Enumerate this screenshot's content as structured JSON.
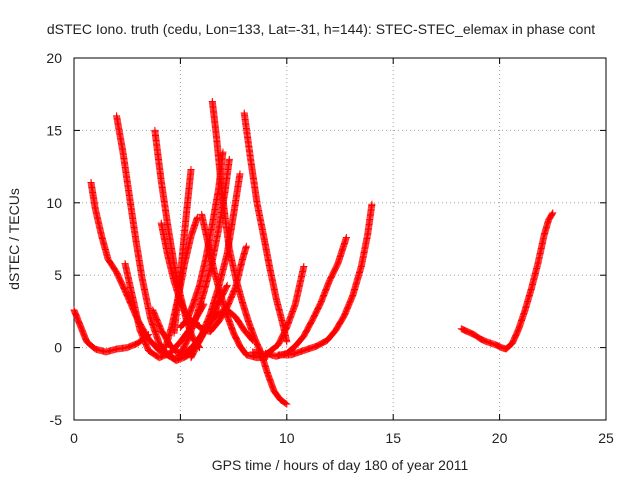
{
  "chart_data": {
    "type": "scatter",
    "title": "dSTEC Iono. truth (cedu, Lon=133, Lat=-31, h=144): STEC-STEC_elemax in phase cont",
    "xlabel": "GPS time / hours of day 180 of year 2011",
    "ylabel": "dSTEC  / TECUs",
    "xlim": [
      0,
      25
    ],
    "ylim": [
      -5,
      20
    ],
    "xticks": [
      "0",
      "5",
      "10",
      "15",
      "20",
      "25"
    ],
    "yticks": [
      "-5",
      "0",
      "5",
      "10",
      "15",
      "20"
    ],
    "grid": true,
    "marker": "plus",
    "color": "#ff0000",
    "series": [
      {
        "points": [
          [
            0.0,
            2.6
          ],
          [
            0.3,
            1.5
          ],
          [
            0.6,
            0.4
          ],
          [
            1.0,
            -0.1
          ],
          [
            1.5,
            -0.3
          ],
          [
            2.0,
            -0.1
          ],
          [
            2.5,
            0.0
          ],
          [
            3.0,
            0.3
          ],
          [
            3.5,
            0.9
          ]
        ]
      },
      {
        "points": [
          [
            0.8,
            11.4
          ],
          [
            1.0,
            9.6
          ],
          [
            1.3,
            7.7
          ],
          [
            1.6,
            6.1
          ],
          [
            2.0,
            5.2
          ],
          [
            2.5,
            3.6
          ],
          [
            3.0,
            1.9
          ],
          [
            3.5,
            0.6
          ],
          [
            4.0,
            -0.2
          ],
          [
            4.5,
            -0.6
          ],
          [
            4.8,
            -0.8
          ]
        ]
      },
      {
        "points": [
          [
            2.0,
            16.0
          ],
          [
            2.3,
            13.5
          ],
          [
            2.6,
            10.5
          ],
          [
            2.9,
            7.5
          ],
          [
            3.2,
            4.8
          ],
          [
            3.6,
            2.0
          ],
          [
            4.0,
            0.3
          ],
          [
            4.4,
            -0.5
          ],
          [
            4.8,
            -0.9
          ],
          [
            5.3,
            -0.6
          ],
          [
            5.8,
            0.2
          ],
          [
            6.3,
            1.5
          ],
          [
            6.8,
            3.1
          ],
          [
            7.2,
            4.3
          ]
        ]
      },
      {
        "points": [
          [
            2.4,
            5.8
          ],
          [
            2.8,
            3.2
          ],
          [
            3.1,
            1.2
          ],
          [
            3.5,
            -0.2
          ],
          [
            4.0,
            -0.7
          ],
          [
            4.5,
            -0.4
          ],
          [
            5.0,
            0.4
          ],
          [
            5.4,
            1.2
          ],
          [
            5.8,
            2.2
          ],
          [
            6.1,
            3.0
          ]
        ]
      },
      {
        "points": [
          [
            3.8,
            15.0
          ],
          [
            4.1,
            11.5
          ],
          [
            4.4,
            8.5
          ],
          [
            4.7,
            5.8
          ],
          [
            5.0,
            3.6
          ],
          [
            5.3,
            1.8
          ],
          [
            5.6,
            0.6
          ],
          [
            5.9,
            0.0
          ]
        ]
      },
      {
        "points": [
          [
            4.1,
            8.6
          ],
          [
            4.4,
            6.4
          ],
          [
            4.7,
            4.6
          ],
          [
            5.0,
            3.2
          ],
          [
            5.3,
            2.2
          ],
          [
            5.6,
            1.7
          ],
          [
            5.9,
            1.5
          ]
        ]
      },
      {
        "points": [
          [
            3.7,
            2.6
          ],
          [
            4.1,
            1.2
          ],
          [
            4.5,
            0.2
          ],
          [
            4.8,
            -0.3
          ],
          [
            5.2,
            -0.4
          ],
          [
            5.6,
            0.1
          ],
          [
            6.0,
            0.9
          ],
          [
            6.4,
            2.3
          ],
          [
            6.8,
            4.2
          ],
          [
            7.2,
            6.5
          ],
          [
            7.5,
            9.2
          ],
          [
            7.8,
            12.0
          ]
        ]
      },
      {
        "points": [
          [
            4.3,
            0.0
          ],
          [
            4.6,
            1.5
          ],
          [
            4.9,
            3.5
          ],
          [
            5.2,
            5.8
          ],
          [
            5.5,
            7.7
          ],
          [
            5.8,
            9.0
          ]
        ]
      },
      {
        "points": [
          [
            4.7,
            1.0
          ],
          [
            4.9,
            3.5
          ],
          [
            5.1,
            6.5
          ],
          [
            5.3,
            9.5
          ],
          [
            5.5,
            12.3
          ]
        ]
      },
      {
        "points": [
          [
            4.9,
            -0.7
          ],
          [
            5.3,
            0.4
          ],
          [
            5.7,
            1.9
          ],
          [
            6.1,
            3.8
          ],
          [
            6.5,
            6.0
          ],
          [
            6.8,
            8.2
          ],
          [
            7.1,
            10.8
          ],
          [
            7.3,
            13.0
          ]
        ]
      },
      {
        "points": [
          [
            5.0,
            1.4
          ],
          [
            5.3,
            1.9
          ],
          [
            5.6,
            3.0
          ],
          [
            5.9,
            4.3
          ],
          [
            6.2,
            6.2
          ],
          [
            6.5,
            8.5
          ],
          [
            6.8,
            11.0
          ],
          [
            7.0,
            13.5
          ]
        ]
      },
      {
        "points": [
          [
            5.3,
            2.0
          ],
          [
            5.6,
            1.8
          ],
          [
            6.0,
            1.3
          ],
          [
            6.4,
            1.1
          ],
          [
            6.8,
            1.8
          ],
          [
            7.2,
            2.8
          ],
          [
            7.6,
            4.2
          ],
          [
            7.9,
            6.0
          ],
          [
            8.1,
            7.0
          ]
        ]
      },
      {
        "points": [
          [
            5.5,
            -0.7
          ],
          [
            5.8,
            0.2
          ],
          [
            6.1,
            1.1
          ],
          [
            6.4,
            1.7
          ],
          [
            6.8,
            2.4
          ],
          [
            7.2,
            2.6
          ],
          [
            7.6,
            2.1
          ],
          [
            8.0,
            1.2
          ],
          [
            8.4,
            0.5
          ]
        ]
      },
      {
        "points": [
          [
            6.5,
            17.0
          ],
          [
            6.7,
            14.5
          ],
          [
            6.9,
            11.5
          ],
          [
            7.1,
            9.0
          ],
          [
            7.3,
            6.8
          ],
          [
            7.6,
            4.8
          ],
          [
            7.9,
            3.2
          ],
          [
            8.2,
            1.8
          ],
          [
            8.5,
            0.6
          ],
          [
            8.8,
            -0.4
          ],
          [
            9.1,
            -1.8
          ],
          [
            9.4,
            -3.0
          ],
          [
            9.7,
            -3.6
          ],
          [
            10.0,
            -3.9
          ]
        ]
      },
      {
        "points": [
          [
            6.0,
            9.2
          ],
          [
            6.3,
            7.2
          ],
          [
            6.6,
            5.2
          ],
          [
            6.9,
            3.6
          ],
          [
            7.2,
            2.2
          ],
          [
            7.5,
            1.0
          ],
          [
            7.8,
            0.1
          ],
          [
            8.1,
            -0.5
          ],
          [
            8.6,
            -0.7
          ],
          [
            9.1,
            -0.6
          ]
        ]
      },
      {
        "points": [
          [
            8.0,
            16.2
          ],
          [
            8.3,
            13.0
          ],
          [
            8.6,
            10.0
          ],
          [
            8.9,
            7.8
          ],
          [
            9.2,
            5.5
          ],
          [
            9.5,
            3.4
          ],
          [
            9.8,
            1.7
          ],
          [
            10.0,
            0.4
          ]
        ]
      },
      {
        "points": [
          [
            8.4,
            -0.3
          ],
          [
            9.0,
            -0.5
          ],
          [
            9.6,
            0.2
          ],
          [
            10.0,
            1.4
          ],
          [
            10.4,
            3.0
          ],
          [
            10.8,
            5.6
          ]
        ]
      },
      {
        "points": [
          [
            9.0,
            -0.4
          ],
          [
            9.5,
            -0.6
          ],
          [
            10.0,
            -0.4
          ],
          [
            10.4,
            0.1
          ],
          [
            10.8,
            0.8
          ],
          [
            11.2,
            1.9
          ],
          [
            11.6,
            3.1
          ],
          [
            12.0,
            4.6
          ],
          [
            12.4,
            5.8
          ],
          [
            12.8,
            7.6
          ]
        ]
      },
      {
        "points": [
          [
            9.6,
            -0.5
          ],
          [
            10.2,
            -0.5
          ],
          [
            10.8,
            -0.2
          ],
          [
            11.4,
            0.1
          ],
          [
            11.9,
            0.5
          ],
          [
            12.3,
            1.2
          ],
          [
            12.7,
            2.2
          ],
          [
            13.1,
            3.6
          ],
          [
            13.5,
            5.6
          ],
          [
            13.8,
            7.8
          ],
          [
            14.0,
            9.9
          ]
        ]
      },
      {
        "points": [
          [
            18.2,
            1.3
          ],
          [
            18.5,
            1.1
          ],
          [
            18.8,
            0.9
          ],
          [
            19.1,
            0.6
          ],
          [
            19.4,
            0.4
          ],
          [
            19.8,
            0.2
          ],
          [
            20.1,
            0.0
          ],
          [
            20.3,
            -0.1
          ],
          [
            20.6,
            0.3
          ],
          [
            20.9,
            1.3
          ],
          [
            21.2,
            2.6
          ],
          [
            21.5,
            4.1
          ],
          [
            21.8,
            5.8
          ],
          [
            22.1,
            7.8
          ],
          [
            22.3,
            8.8
          ],
          [
            22.5,
            9.3
          ]
        ]
      }
    ]
  }
}
